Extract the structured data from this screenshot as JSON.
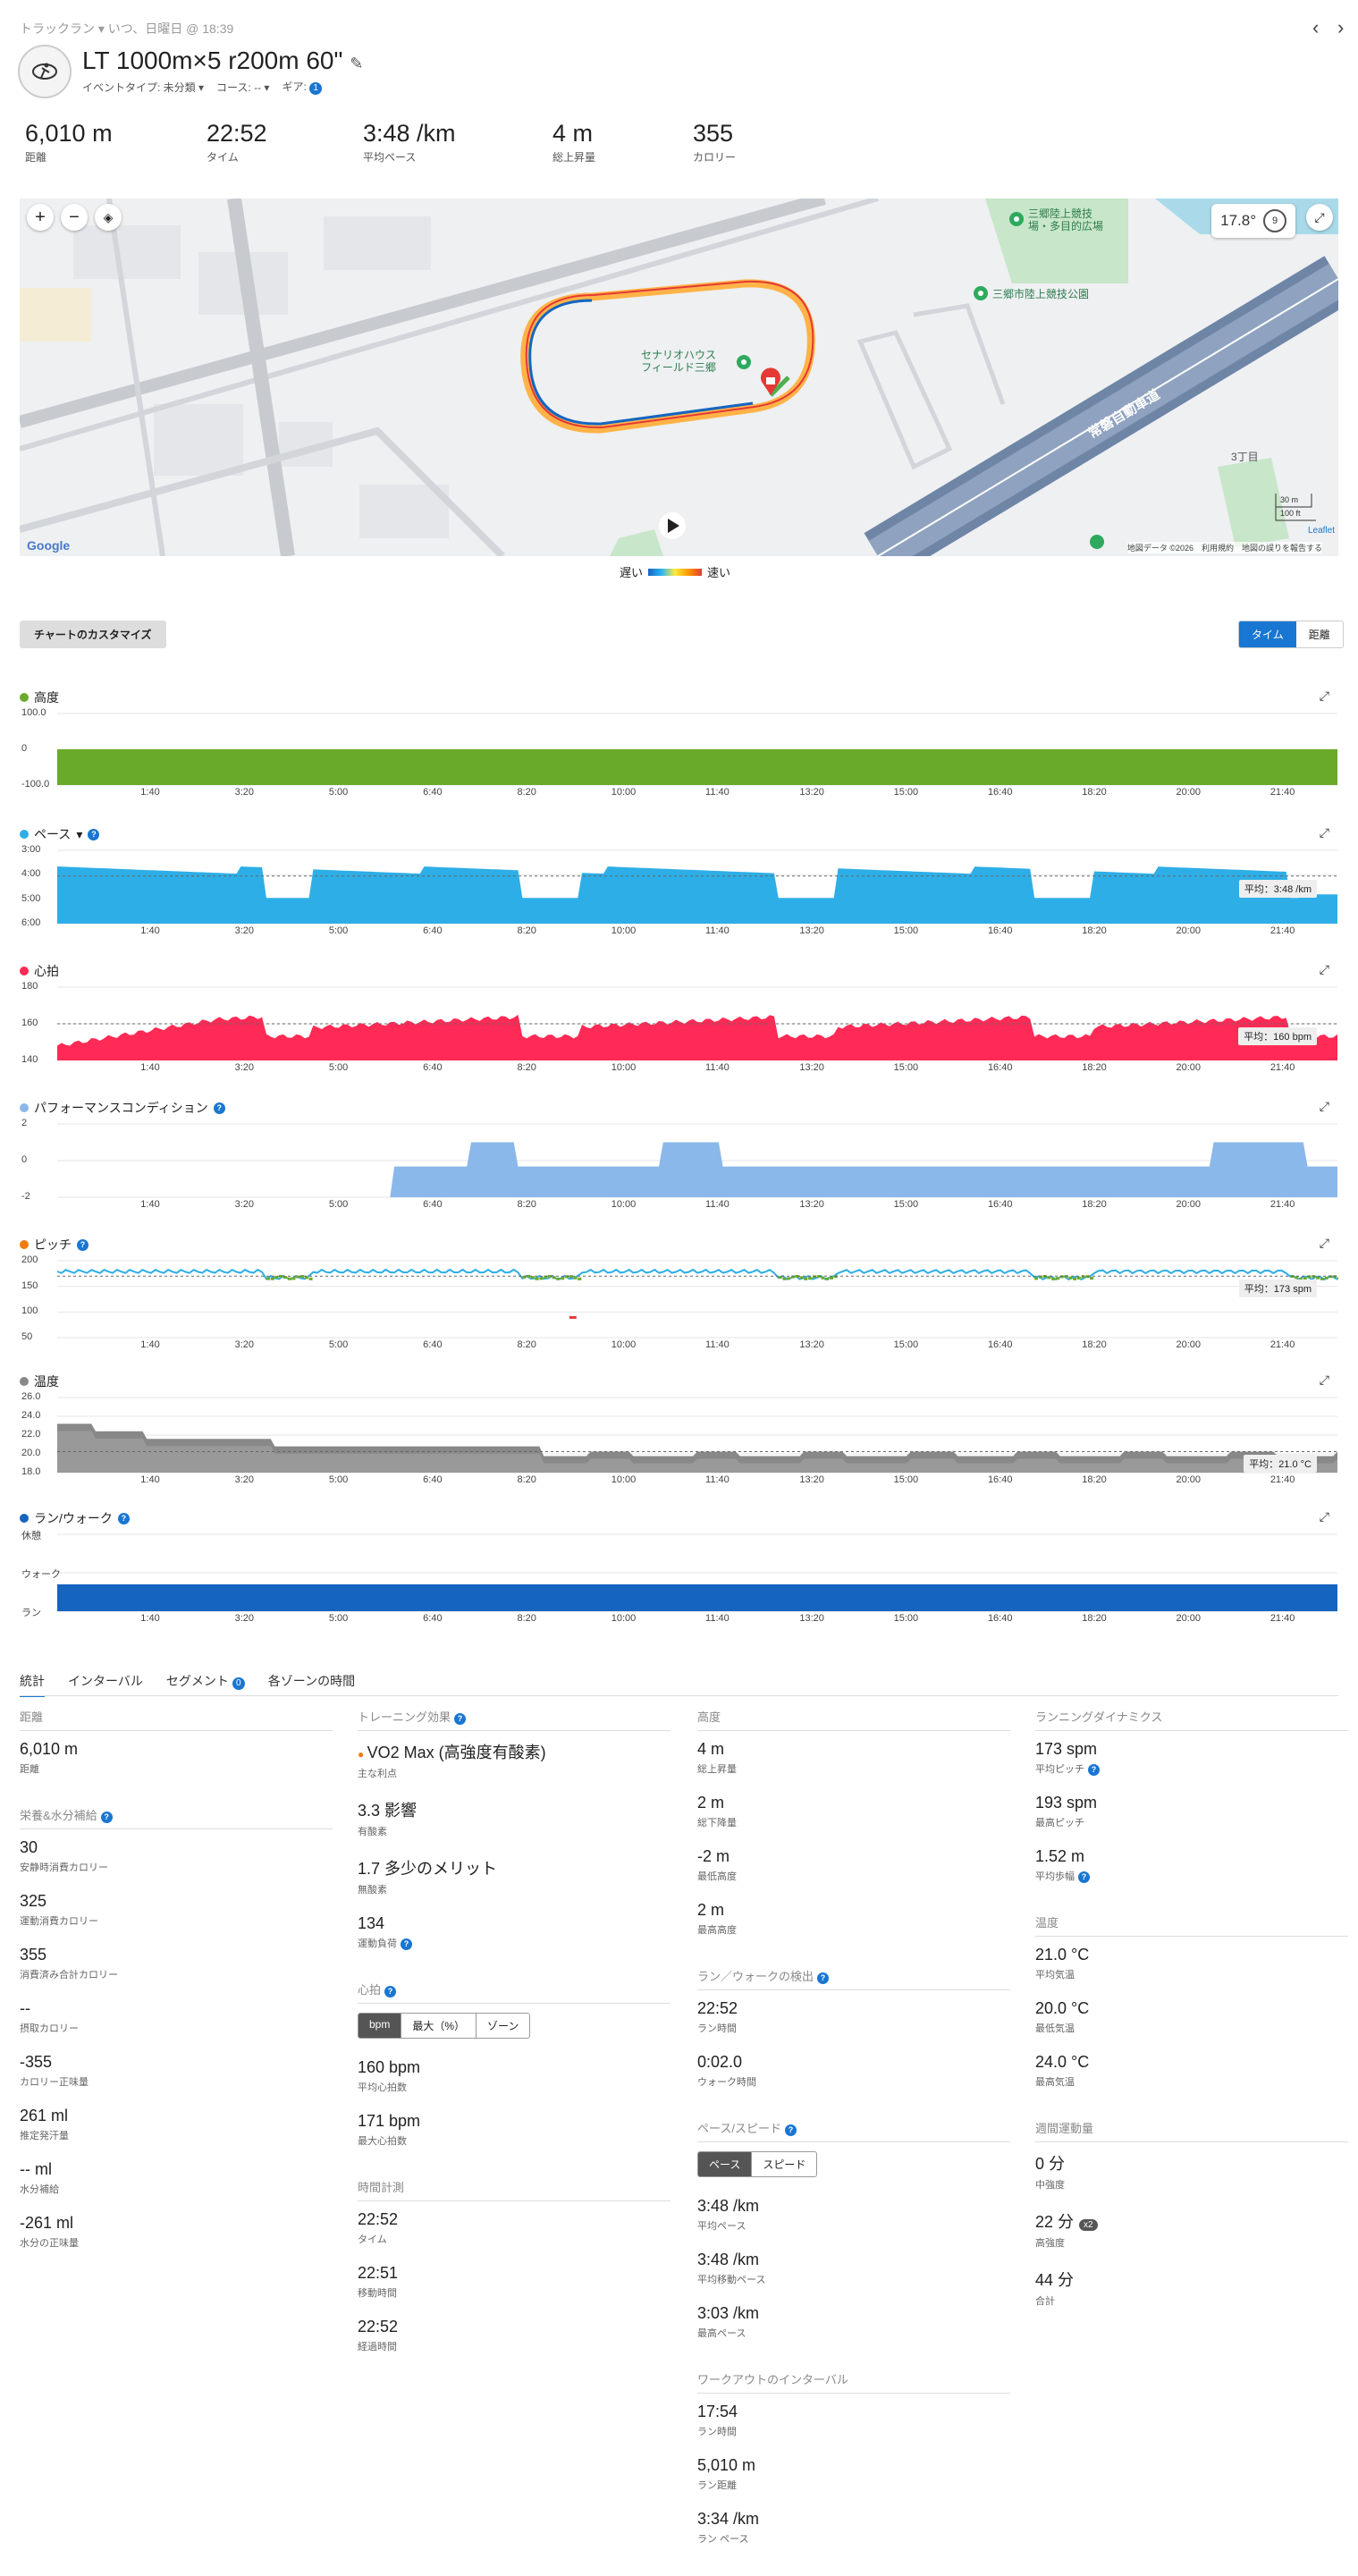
{
  "header": {
    "breadcrumb": "トラックラン ▾ いつ、日曜日 @ 18:39",
    "title": "LT 1000m×5 r200m 60\"",
    "event_type": "イベントタイプ: 未分類",
    "course": "コース: --",
    "gear": "ギア:",
    "gear_count": "1"
  },
  "summary": [
    {
      "value": "6,010 m",
      "label": "距離"
    },
    {
      "value": "22:52",
      "label": "タイム"
    },
    {
      "value": "3:48 /km",
      "label": "平均ペース"
    },
    {
      "value": "4 m",
      "label": "総上昇量"
    },
    {
      "value": "355",
      "label": "カロリー"
    }
  ],
  "map": {
    "temperature": "17.8°",
    "wind": "9",
    "labels": {
      "stadium": "セナリオハウス\nフィールド三郷",
      "park": "三郷市陸上競技公園",
      "field": "三郷陸上競技\n場・多目的広場",
      "road": "常磐自動車道",
      "chome": "3丁目",
      "scale_m": "30 m",
      "scale_ft": "100 ft",
      "leaflet": "Leaflet",
      "attribution": "地図データ ©2026　利用規約　地図の誤りを報告する",
      "google": "Google"
    },
    "legend_slow": "遅い",
    "legend_fast": "速い"
  },
  "controls": {
    "customize": "チャートのカスタマイズ",
    "time": "タイム",
    "distance": "距離"
  },
  "x_ticks": [
    "1:40",
    "3:20",
    "5:00",
    "6:40",
    "8:20",
    "10:00",
    "11:40",
    "13:20",
    "15:00",
    "16:40",
    "18:20",
    "20:00",
    "21:40"
  ],
  "charts": {
    "elevation": {
      "title": "高度",
      "color": "#6aaa2a",
      "y": [
        "100.0",
        "0",
        "-100.0"
      ]
    },
    "pace": {
      "title": "ペース",
      "color": "#2eaee6",
      "y": [
        "3:00",
        "4:00",
        "5:00",
        "6:00"
      ],
      "avg": "平均：3:48 /km"
    },
    "hr": {
      "title": "心拍",
      "color": "#ff2a55",
      "y": [
        "180",
        "160",
        "140"
      ],
      "avg": "平均：160 bpm"
    },
    "perf": {
      "title": "パフォーマンスコンディション",
      "color": "#8bb8ea",
      "y": [
        "2",
        "0",
        "-2"
      ]
    },
    "cadence": {
      "title": "ピッチ",
      "color": "#f07c10",
      "y": [
        "200",
        "150",
        "100",
        "50"
      ],
      "avg": "平均：173 spm"
    },
    "temp": {
      "title": "温度",
      "color": "#888888",
      "y": [
        "26.0",
        "24.0",
        "22.0",
        "20.0",
        "18.0"
      ],
      "avg": "平均：21.0 °C"
    },
    "runwalk": {
      "title": "ラン/ウォーク",
      "color": "#1565c0",
      "y": [
        "休憩",
        "ウォーク",
        "ラン"
      ]
    }
  },
  "chart_data": [
    {
      "type": "area",
      "title": "高度",
      "x_unit": "time",
      "x": [
        "0:00",
        "23:00"
      ],
      "values": [
        0,
        0
      ],
      "ylim": [
        -100,
        100
      ]
    },
    {
      "type": "area",
      "title": "ペース",
      "ylim": [
        "3:00",
        "6:00"
      ],
      "avg": "3:48 /km"
    },
    {
      "type": "area",
      "title": "心拍",
      "ylim": [
        140,
        180
      ],
      "avg": 160
    },
    {
      "type": "area",
      "title": "パフォーマンスコンディション",
      "ylim": [
        -2,
        2
      ]
    },
    {
      "type": "line",
      "title": "ピッチ",
      "ylim": [
        50,
        200
      ],
      "avg": 173
    },
    {
      "type": "area",
      "title": "温度",
      "ylim": [
        18,
        26
      ],
      "avg": 21.0
    },
    {
      "type": "area",
      "title": "ラン/ウォーク",
      "categories": [
        "休憩",
        "ウォーク",
        "ラン"
      ]
    }
  ],
  "tabs": [
    "統計",
    "インターバル",
    "セグメント",
    "各ゾーンの時間"
  ],
  "segment_count": "0",
  "stats": {
    "distance": {
      "header": "距離",
      "items": [
        {
          "v": "6,010 m",
          "l": "距離"
        }
      ]
    },
    "nutrition": {
      "header": "栄養&水分補給",
      "items": [
        {
          "v": "30",
          "l": "安静時消費カロリー"
        },
        {
          "v": "325",
          "l": "運動消費カロリー"
        },
        {
          "v": "355",
          "l": "消費済み合計カロリー"
        },
        {
          "v": "--",
          "l": "摂取カロリー"
        },
        {
          "v": "-355",
          "l": "カロリー正味量"
        },
        {
          "v": "261 ml",
          "l": "推定発汗量"
        },
        {
          "v": "-- ml",
          "l": "水分補給"
        },
        {
          "v": "-261 ml",
          "l": "水分の正味量"
        }
      ]
    },
    "training": {
      "header": "トレーニング効果",
      "items": [
        {
          "v": "VO2 Max (高強度有酸素)",
          "l": "主な利点"
        },
        {
          "v": "3.3 影響",
          "l": "有酸素"
        },
        {
          "v": "1.7 多少のメリット",
          "l": "無酸素"
        },
        {
          "v": "134",
          "l": "運動負荷"
        }
      ]
    },
    "heart": {
      "header": "心拍",
      "toggle": [
        "bpm",
        "最大（%）",
        "ゾーン"
      ],
      "items": [
        {
          "v": "160 bpm",
          "l": "平均心拍数"
        },
        {
          "v": "171 bpm",
          "l": "最大心拍数"
        }
      ]
    },
    "timing": {
      "header": "時間計測",
      "items": [
        {
          "v": "22:52",
          "l": "タイム"
        },
        {
          "v": "22:51",
          "l": "移動時間"
        },
        {
          "v": "22:52",
          "l": "経過時間"
        }
      ]
    },
    "elevation": {
      "header": "高度",
      "items": [
        {
          "v": "4 m",
          "l": "総上昇量"
        },
        {
          "v": "2 m",
          "l": "総下降量"
        },
        {
          "v": "-2 m",
          "l": "最低高度"
        },
        {
          "v": "2 m",
          "l": "最高高度"
        }
      ]
    },
    "runwalk": {
      "header": "ラン／ウォークの検出",
      "items": [
        {
          "v": "22:52",
          "l": "ラン時間"
        },
        {
          "v": "0:02.0",
          "l": "ウォーク時間"
        }
      ]
    },
    "pace": {
      "header": "ペース/スピード",
      "toggle": [
        "ペース",
        "スピード"
      ],
      "items": [
        {
          "v": "3:48 /km",
          "l": "平均ペース"
        },
        {
          "v": "3:48 /km",
          "l": "平均移動ペース"
        },
        {
          "v": "3:03 /km",
          "l": "最高ペース"
        }
      ]
    },
    "workout": {
      "header": "ワークアウトのインターバル",
      "items": [
        {
          "v": "17:54",
          "l": "ラン時間"
        },
        {
          "v": "5,010 m",
          "l": "ラン距離"
        },
        {
          "v": "3:34 /km",
          "l": "ラン ペース"
        }
      ]
    },
    "dynamics": {
      "header": "ランニングダイナミクス",
      "items": [
        {
          "v": "173 spm",
          "l": "平均ピッチ"
        },
        {
          "v": "193 spm",
          "l": "最高ピッチ"
        },
        {
          "v": "1.52 m",
          "l": "平均歩幅"
        }
      ]
    },
    "temperature": {
      "header": "温度",
      "items": [
        {
          "v": "21.0 °C",
          "l": "平均気温"
        },
        {
          "v": "20.0 °C",
          "l": "最低気温"
        },
        {
          "v": "24.0 °C",
          "l": "最高気温"
        }
      ]
    },
    "intensity": {
      "header": "週間運動量",
      "items": [
        {
          "v": "0 分",
          "l": "中強度"
        },
        {
          "v": "22 分",
          "l": "高強度",
          "badge": "x2"
        },
        {
          "v": "44 分",
          "l": "合計"
        }
      ]
    }
  }
}
